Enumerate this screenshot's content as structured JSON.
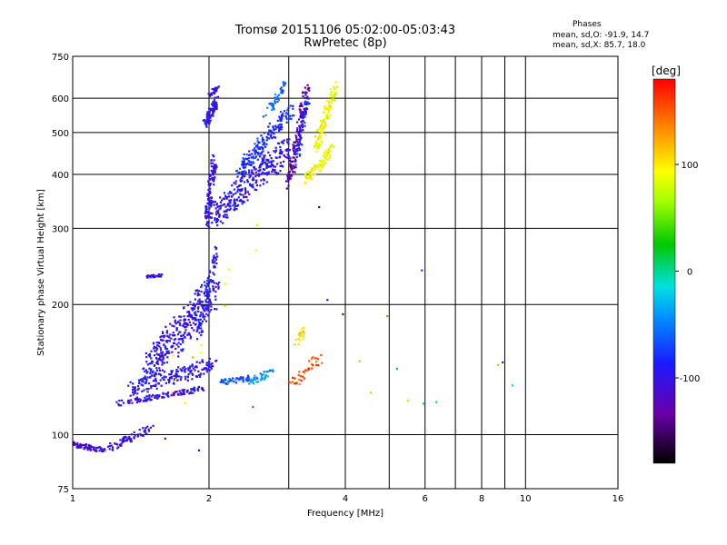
{
  "page": {
    "title": "Tromsø 20151106 05:02:00-05:03:43",
    "subtitle": "RwPretec (8p)",
    "phases": {
      "heading": "Phases",
      "line_o": "mean, sd,O: -91.9, 14.7",
      "line_x": "mean, sd,X: 85.7, 18.0"
    }
  },
  "chart_data": {
    "type": "scatter",
    "title": "Tromsø 20151106 05:02:00-05:03:43",
    "subtitle": "RwPretec (8p)",
    "xlabel": "Frequency [MHz]",
    "ylabel": "Stationary phase Virtual Height [km]",
    "x_scale": "log",
    "y_scale": "log",
    "xlim": [
      1,
      16
    ],
    "ylim": [
      75,
      750
    ],
    "x_ticks": [
      1,
      2,
      4,
      6,
      8,
      10,
      16
    ],
    "x_tick_labels": [
      "1",
      "2",
      "4",
      "6",
      "8",
      "10",
      "16"
    ],
    "x_minor_lines": [
      3,
      5,
      7,
      9
    ],
    "y_ticks": [
      75,
      100,
      200,
      300,
      400,
      500,
      600,
      750
    ],
    "y_tick_labels": [
      "75",
      "100",
      "200",
      "300",
      "400",
      "500",
      "600",
      "750"
    ],
    "grid": true,
    "colorbar": {
      "label": "[deg]",
      "range": [
        -180,
        180
      ],
      "ticks": [
        100,
        0,
        -100
      ],
      "tick_labels": [
        "100",
        "0",
        "-100"
      ]
    },
    "phase_stats": {
      "O": {
        "mean": -91.9,
        "sd": 14.7
      },
      "X": {
        "mean": 85.7,
        "sd": 18.0
      }
    },
    "series": [
      {
        "f": [
          1.0,
          1.18
        ],
        "h": [
          95,
          92
        ],
        "phase": -115,
        "spread": 0.02,
        "n": 70
      },
      {
        "f": [
          1.2,
          1.5
        ],
        "h": [
          93,
          104
        ],
        "phase": -110,
        "spread": 0.03,
        "n": 70
      },
      {
        "f": [
          1.25,
          1.95
        ],
        "h": [
          118,
          128
        ],
        "phase": -105,
        "spread": 0.02,
        "n": 120
      },
      {
        "f": [
          1.35,
          2.05
        ],
        "h": [
          128,
          145
        ],
        "phase": -100,
        "spread": 0.06,
        "n": 170
      },
      {
        "f": [
          1.45,
          2.05
        ],
        "h": [
          140,
          215
        ],
        "phase": -100,
        "spread": 0.12,
        "n": 360
      },
      {
        "f": [
          1.9,
          2.08
        ],
        "h": [
          170,
          270
        ],
        "phase": -95,
        "spread": 0.05,
        "n": 80
      },
      {
        "f": [
          1.45,
          1.58
        ],
        "h": [
          232,
          234
        ],
        "phase": -105,
        "spread": 0.01,
        "n": 25
      },
      {
        "f": [
          2.1,
          2.45
        ],
        "h": [
          132,
          135
        ],
        "phase": -70,
        "spread": 0.02,
        "n": 50
      },
      {
        "f": [
          2.45,
          2.75
        ],
        "h": [
          132,
          140
        ],
        "phase": -40,
        "spread": 0.03,
        "n": 40
      },
      {
        "f": [
          1.98,
          2.05
        ],
        "h": [
          310,
          430
        ],
        "phase": -105,
        "spread": 0.05,
        "n": 120
      },
      {
        "f": [
          2.05,
          3.0
        ],
        "h": [
          320,
          460
        ],
        "phase": -100,
        "spread": 0.09,
        "n": 300
      },
      {
        "f": [
          2.3,
          3.05
        ],
        "h": [
          400,
          570
        ],
        "phase": -85,
        "spread": 0.06,
        "n": 180
      },
      {
        "f": [
          1.96,
          2.08
        ],
        "h": [
          520,
          590
        ],
        "phase": -100,
        "spread": 0.04,
        "n": 90
      },
      {
        "f": [
          2.0,
          2.1
        ],
        "h": [
          610,
          640
        ],
        "phase": -110,
        "spread": 0.02,
        "n": 25
      },
      {
        "f": [
          2.65,
          2.95
        ],
        "h": [
          540,
          640
        ],
        "phase": -60,
        "spread": 0.04,
        "n": 40
      },
      {
        "f": [
          3.0,
          3.3
        ],
        "h": [
          380,
          640
        ],
        "phase": -135,
        "spread": 0.05,
        "n": 130
      },
      {
        "f": [
          3.1,
          3.3
        ],
        "h": [
          420,
          600
        ],
        "phase": -90,
        "spread": 0.04,
        "n": 60
      },
      {
        "f": [
          3.25,
          3.75
        ],
        "h": [
          385,
          460
        ],
        "phase": 95,
        "spread": 0.04,
        "n": 90
      },
      {
        "f": [
          3.45,
          3.8
        ],
        "h": [
          460,
          640
        ],
        "phase": 90,
        "spread": 0.05,
        "n": 110
      },
      {
        "f": [
          3.1,
          3.25
        ],
        "h": [
          160,
          175
        ],
        "phase": 115,
        "spread": 0.04,
        "n": 20
      },
      {
        "f": [
          3.0,
          3.55
        ],
        "h": [
          128,
          152
        ],
        "phase": 150,
        "spread": 0.05,
        "n": 40
      },
      {
        "f": [
          1.6,
          2.6
        ],
        "h": [
          110,
          300
        ],
        "phase": 110,
        "spread": 0.2,
        "n": 12
      }
    ],
    "points": [
      {
        "f": 5.9,
        "h": 240,
        "phase": -70
      },
      {
        "f": 3.95,
        "h": 190,
        "phase": -100
      },
      {
        "f": 3.65,
        "h": 205,
        "phase": -105
      },
      {
        "f": 4.3,
        "h": 148,
        "phase": 120
      },
      {
        "f": 4.55,
        "h": 125,
        "phase": 115
      },
      {
        "f": 4.95,
        "h": 188,
        "phase": 140
      },
      {
        "f": 5.2,
        "h": 142,
        "phase": -40
      },
      {
        "f": 5.5,
        "h": 120,
        "phase": 110
      },
      {
        "f": 5.95,
        "h": 118,
        "phase": -30
      },
      {
        "f": 6.35,
        "h": 119,
        "phase": -20
      },
      {
        "f": 8.9,
        "h": 147,
        "phase": -100
      },
      {
        "f": 9.35,
        "h": 130,
        "phase": -10
      },
      {
        "f": 8.7,
        "h": 145,
        "phase": 120
      },
      {
        "f": 3.5,
        "h": 336,
        "phase": -150
      },
      {
        "f": 2.5,
        "h": 116,
        "phase": 160
      },
      {
        "f": 1.9,
        "h": 92,
        "phase": -100
      },
      {
        "f": 1.6,
        "h": 98,
        "phase": -100
      }
    ]
  }
}
